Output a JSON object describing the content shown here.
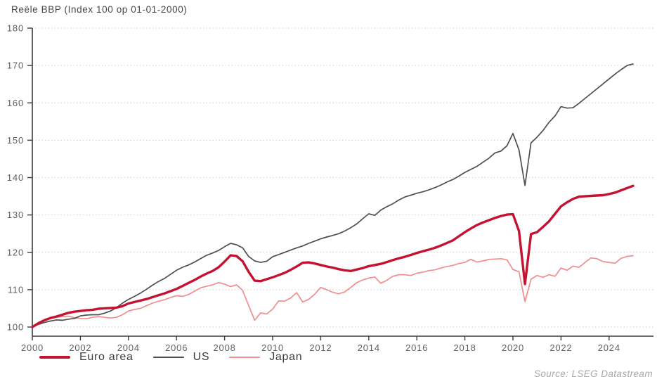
{
  "chart_data": {
    "type": "line",
    "title": "Reële BBP (Index 100 op 01-01-2000)",
    "x_start": 2000.0,
    "x_step": 0.25,
    "x_ticks": [
      2000,
      2002,
      2004,
      2006,
      2008,
      2010,
      2012,
      2014,
      2016,
      2018,
      2020,
      2022,
      2024
    ],
    "y_ticks": [
      100,
      110,
      120,
      130,
      140,
      150,
      160,
      170,
      180
    ],
    "x_range": [
      2000,
      2025.3
    ],
    "y_range": [
      100,
      180
    ],
    "grid": "dotted-horizontal",
    "legend_position": "bottom-left",
    "series": [
      {
        "name": "Euro area",
        "color": "#c41230",
        "width": 3.4,
        "values": [
          100.0,
          101.0,
          101.8,
          102.4,
          102.8,
          103.3,
          103.8,
          104.1,
          104.3,
          104.5,
          104.6,
          104.9,
          105.0,
          105.1,
          105.2,
          105.6,
          106.3,
          106.7,
          107.1,
          107.5,
          108.0,
          108.5,
          109.0,
          109.6,
          110.2,
          111.0,
          111.8,
          112.6,
          113.5,
          114.3,
          115.0,
          116.0,
          117.5,
          119.2,
          119.0,
          117.6,
          114.8,
          112.4,
          112.3,
          112.8,
          113.3,
          113.9,
          114.5,
          115.3,
          116.2,
          117.2,
          117.3,
          117.0,
          116.6,
          116.2,
          115.9,
          115.5,
          115.2,
          115.0,
          115.4,
          115.8,
          116.3,
          116.6,
          116.9,
          117.4,
          117.9,
          118.4,
          118.8,
          119.3,
          119.8,
          120.3,
          120.7,
          121.2,
          121.8,
          122.5,
          123.2,
          124.3,
          125.4,
          126.4,
          127.3,
          128.0,
          128.6,
          129.2,
          129.7,
          130.1,
          130.2,
          125.7,
          111.5,
          124.9,
          125.4,
          126.8,
          128.3,
          130.3,
          132.3,
          133.4,
          134.3,
          134.9,
          135.0,
          135.1,
          135.2,
          135.3,
          135.6,
          136.0,
          136.6,
          137.2,
          137.8
        ]
      },
      {
        "name": "US",
        "color": "#4f4f4f",
        "width": 1.7,
        "values": [
          100.0,
          100.7,
          101.2,
          101.6,
          101.9,
          101.8,
          102.1,
          102.3,
          103.0,
          103.2,
          103.3,
          103.3,
          103.7,
          104.3,
          105.2,
          106.4,
          107.4,
          108.2,
          109.1,
          110.1,
          111.2,
          112.2,
          113.0,
          114.1,
          115.2,
          116.0,
          116.6,
          117.4,
          118.3,
          119.2,
          119.8,
          120.5,
          121.5,
          122.4,
          122.0,
          121.2,
          118.9,
          117.7,
          117.3,
          117.6,
          118.8,
          119.4,
          120.0,
          120.6,
          121.2,
          121.7,
          122.4,
          123.0,
          123.6,
          124.1,
          124.5,
          125.0,
          125.7,
          126.6,
          127.6,
          129.0,
          130.3,
          129.9,
          131.3,
          132.2,
          133.0,
          134.0,
          134.8,
          135.3,
          135.8,
          136.2,
          136.7,
          137.3,
          138.0,
          138.8,
          139.5,
          140.4,
          141.4,
          142.2,
          143.0,
          144.1,
          145.2,
          146.6,
          147.1,
          148.5,
          151.8,
          147.4,
          137.9,
          149.3,
          150.8,
          152.6,
          154.8,
          156.5,
          159.0,
          158.6,
          158.7,
          159.9,
          161.2,
          162.5,
          163.8,
          165.1,
          166.4,
          167.7,
          168.9,
          170.0,
          170.4
        ]
      },
      {
        "name": "Japan",
        "color": "#f18d8d",
        "width": 1.7,
        "values": [
          100.0,
          101.2,
          101.9,
          102.3,
          102.6,
          102.8,
          102.9,
          102.5,
          102.3,
          102.2,
          102.6,
          102.8,
          102.6,
          102.4,
          102.6,
          103.3,
          104.3,
          104.7,
          105.0,
          105.7,
          106.4,
          106.9,
          107.3,
          107.9,
          108.4,
          108.2,
          108.7,
          109.6,
          110.5,
          110.9,
          111.3,
          111.9,
          111.5,
          110.8,
          111.3,
          109.8,
          105.8,
          101.8,
          103.8,
          103.5,
          104.8,
          107.0,
          106.9,
          107.8,
          109.2,
          106.7,
          107.4,
          108.8,
          110.6,
          110.0,
          109.3,
          108.9,
          109.4,
          110.6,
          111.9,
          112.6,
          113.1,
          113.4,
          111.7,
          112.5,
          113.6,
          114.0,
          114.0,
          113.8,
          114.4,
          114.7,
          115.1,
          115.3,
          115.8,
          116.2,
          116.5,
          117.0,
          117.3,
          118.1,
          117.4,
          117.7,
          118.1,
          118.2,
          118.3,
          118.0,
          115.4,
          114.8,
          106.8,
          112.8,
          113.8,
          113.3,
          114.0,
          113.6,
          115.8,
          115.2,
          116.3,
          116.0,
          117.3,
          118.5,
          118.3,
          117.5,
          117.3,
          117.1,
          118.4,
          118.9,
          119.1
        ]
      }
    ]
  },
  "footer": {
    "source": "Source: LSEG Datastream"
  }
}
